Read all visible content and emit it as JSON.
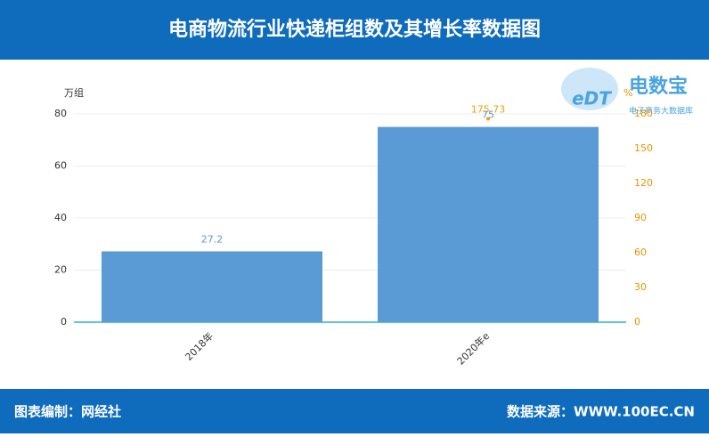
{
  "header": {
    "title": "电商物流行业快递柜组数及其增长率数据图"
  },
  "logo": {
    "mark": "eDT",
    "name": "电数宝",
    "tagline": "电子商务大数据库"
  },
  "chart_data": {
    "type": "bar",
    "categories": [
      "2018年",
      "2020年e"
    ],
    "series": [
      {
        "type": "bar",
        "color": "#5b9bd5",
        "values": [
          27.2,
          75
        ]
      },
      {
        "type": "line",
        "axis": "y2",
        "color": "#f0a30a",
        "values": [
          null,
          175.73
        ]
      }
    ],
    "y_label": "万组",
    "y2_label": "%",
    "ylim": [
      0,
      80
    ],
    "yticks": [
      0,
      20,
      40,
      60,
      80
    ],
    "y2lim": [
      0,
      180
    ],
    "y2ticks": [
      0,
      30,
      60,
      90,
      120,
      150,
      180
    ],
    "grid": true
  },
  "footer": {
    "left": "图表编制：网经社",
    "right": "数据来源：WWW.100EC.CN"
  }
}
